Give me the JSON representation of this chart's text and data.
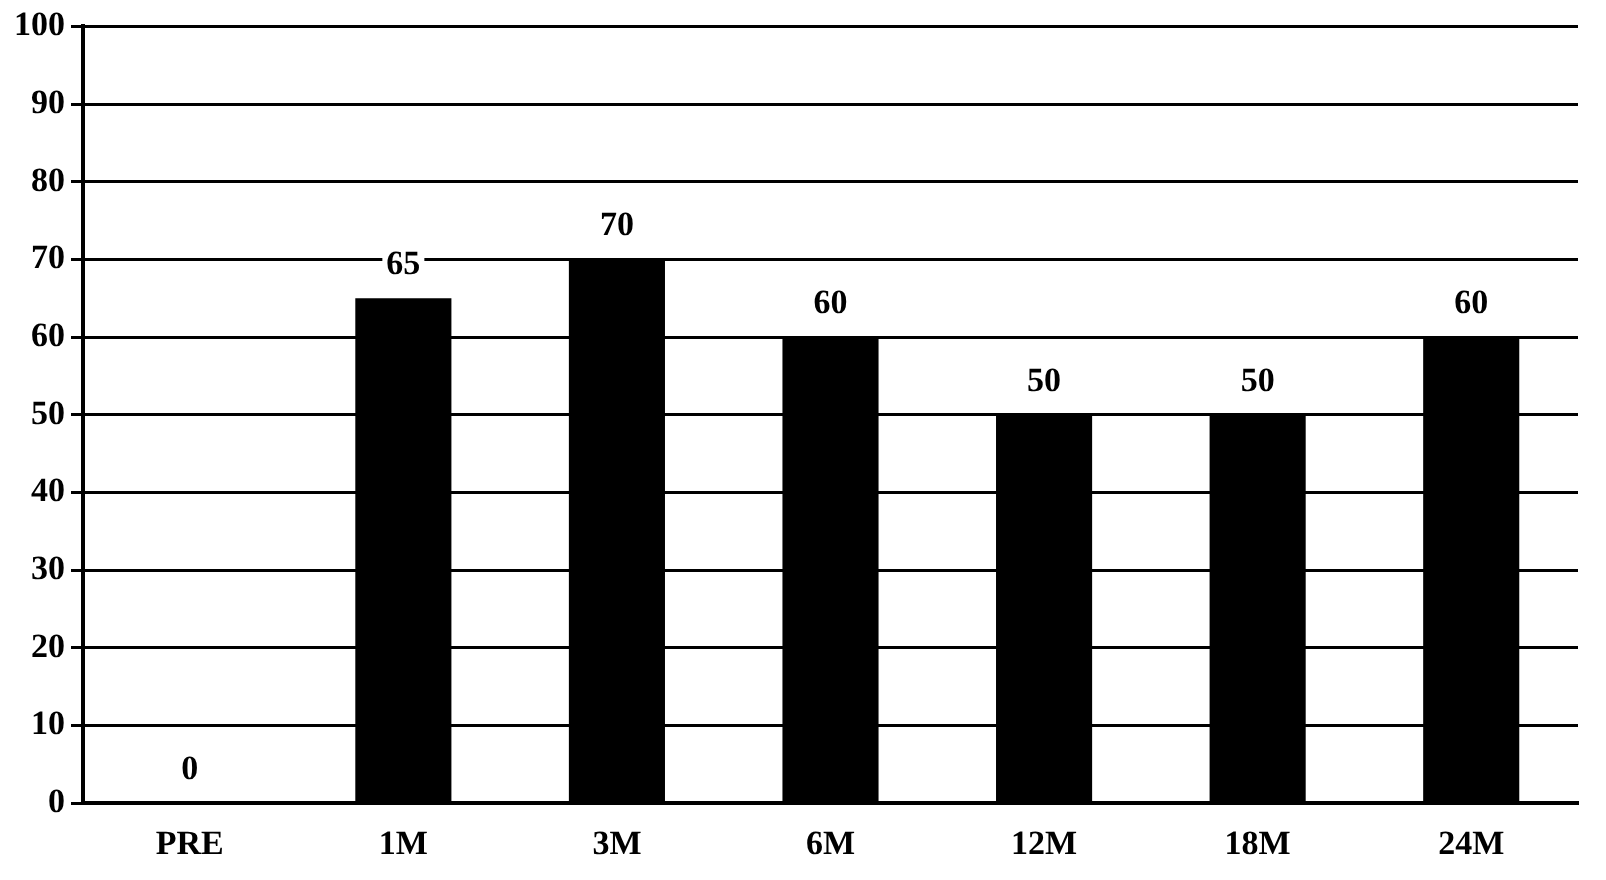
{
  "chart_data": {
    "type": "bar",
    "categories": [
      "PRE",
      "1M",
      "3M",
      "6M",
      "12M",
      "18M",
      "24M"
    ],
    "values": [
      0,
      65,
      70,
      60,
      50,
      50,
      60
    ],
    "color": "#000000",
    "ylim": [
      0,
      100
    ],
    "yticks": [
      0,
      10,
      20,
      30,
      40,
      50,
      60,
      70,
      80,
      90,
      100
    ],
    "grid": "y",
    "data_labels": true,
    "legend": false
  }
}
